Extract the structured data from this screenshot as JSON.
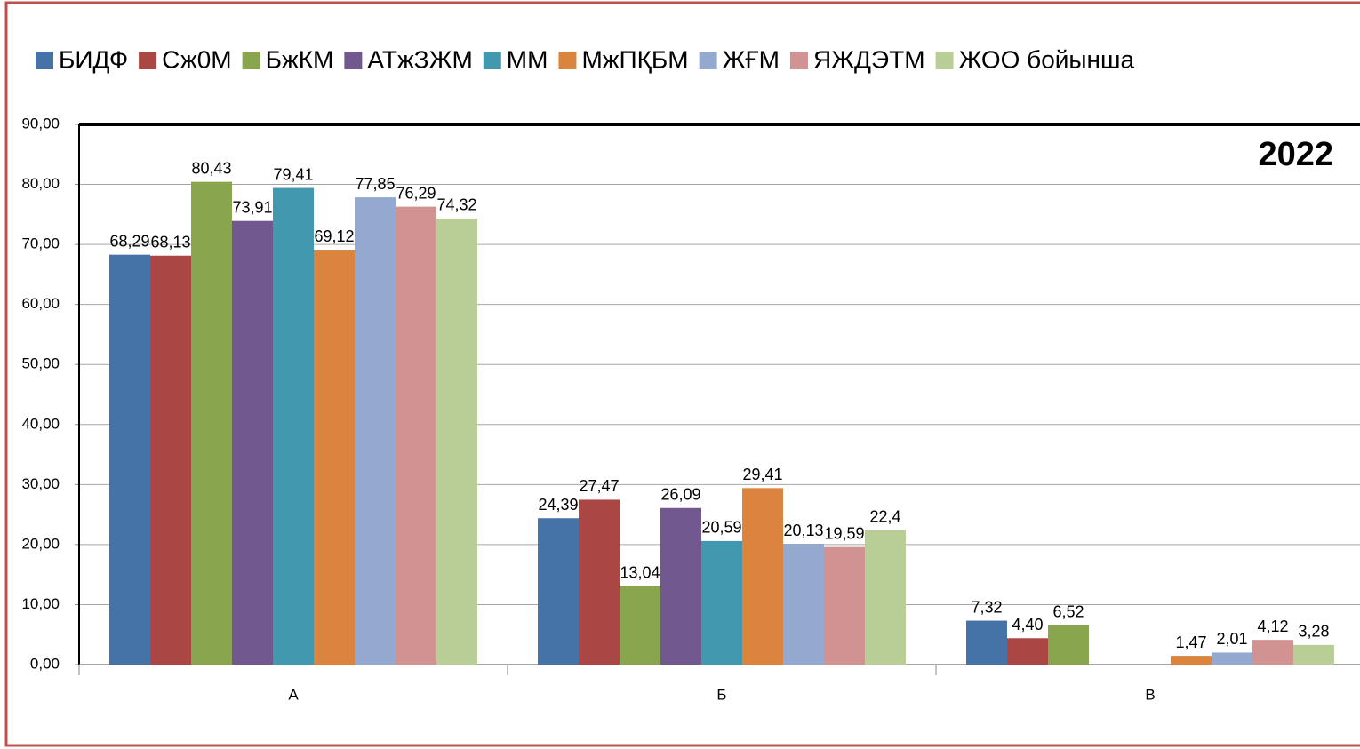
{
  "chart_data": {
    "type": "bar",
    "annotations": [
      "2022"
    ],
    "categories": [
      "А",
      "Б",
      "В"
    ],
    "series": [
      {
        "name": "БИДФ",
        "color": "#4572a7",
        "values": [
          68.29,
          24.39,
          7.32
        ],
        "value_labels": [
          "68,29",
          "24,39",
          "7,32"
        ]
      },
      {
        "name": "Сж0М",
        "color": "#aa4643",
        "values": [
          68.13,
          27.47,
          4.4
        ],
        "value_labels": [
          "68,13",
          "27,47",
          "4,40"
        ]
      },
      {
        "name": "БжКМ",
        "color": "#89a54e",
        "values": [
          80.43,
          13.04,
          6.52
        ],
        "value_labels": [
          "80,43",
          "13,04",
          "6,52"
        ]
      },
      {
        "name": "АТжЗЖМ",
        "color": "#71588f",
        "values": [
          73.91,
          26.09,
          null
        ],
        "value_labels": [
          "73,91",
          "26,09",
          null
        ]
      },
      {
        "name": "ММ",
        "color": "#4198af",
        "values": [
          79.41,
          20.59,
          null
        ],
        "value_labels": [
          "79,41",
          "20,59",
          null
        ]
      },
      {
        "name": "МжПҚБМ",
        "color": "#db843d",
        "values": [
          69.12,
          29.41,
          1.47
        ],
        "value_labels": [
          "69,12",
          "29,41",
          "1,47"
        ]
      },
      {
        "name": "ЖҒМ",
        "color": "#93a9cf",
        "values": [
          77.85,
          20.13,
          2.01
        ],
        "value_labels": [
          "77,85",
          "20,13",
          "2,01"
        ]
      },
      {
        "name": "ЯЖДЭТМ",
        "color": "#d19392",
        "values": [
          76.29,
          19.59,
          4.12
        ],
        "value_labels": [
          "76,29",
          "19,59",
          "4,12"
        ]
      },
      {
        "name": "ЖОО бойынша",
        "color": "#b9cd96",
        "values": [
          74.32,
          22.4,
          3.28
        ],
        "value_labels": [
          "74,32",
          "22,4",
          "3,28"
        ]
      }
    ],
    "ylim": [
      0,
      90
    ],
    "yticks": [
      {
        "value": 0,
        "label": "0,00"
      },
      {
        "value": 10,
        "label": "10,00"
      },
      {
        "value": 20,
        "label": "20,00"
      },
      {
        "value": 30,
        "label": "30,00"
      },
      {
        "value": 40,
        "label": "40,00"
      },
      {
        "value": 50,
        "label": "50,00"
      },
      {
        "value": 60,
        "label": "60,00"
      },
      {
        "value": 70,
        "label": "70,00"
      },
      {
        "value": 80,
        "label": "80,00"
      },
      {
        "value": 90,
        "label": "90,00"
      }
    ],
    "grid": true,
    "legend": "top"
  }
}
